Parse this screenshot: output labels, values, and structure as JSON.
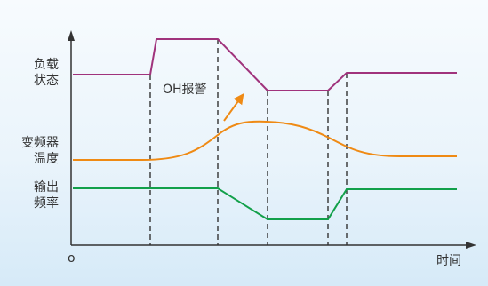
{
  "labels": {
    "load_line1": "负载",
    "load_line2": "状态",
    "temp_line1": "变频器",
    "temp_line2": "温度",
    "freq_line1": "输出",
    "freq_line2": "频率",
    "origin": "o",
    "x_axis": "时间",
    "annotation": "OH报警"
  },
  "colors": {
    "load": "#a0337c",
    "temperature": "#ef8a14",
    "frequency": "#12a04a",
    "axis": "#333333",
    "dashed": "#333333",
    "arrow": "#ef8a14"
  }
}
